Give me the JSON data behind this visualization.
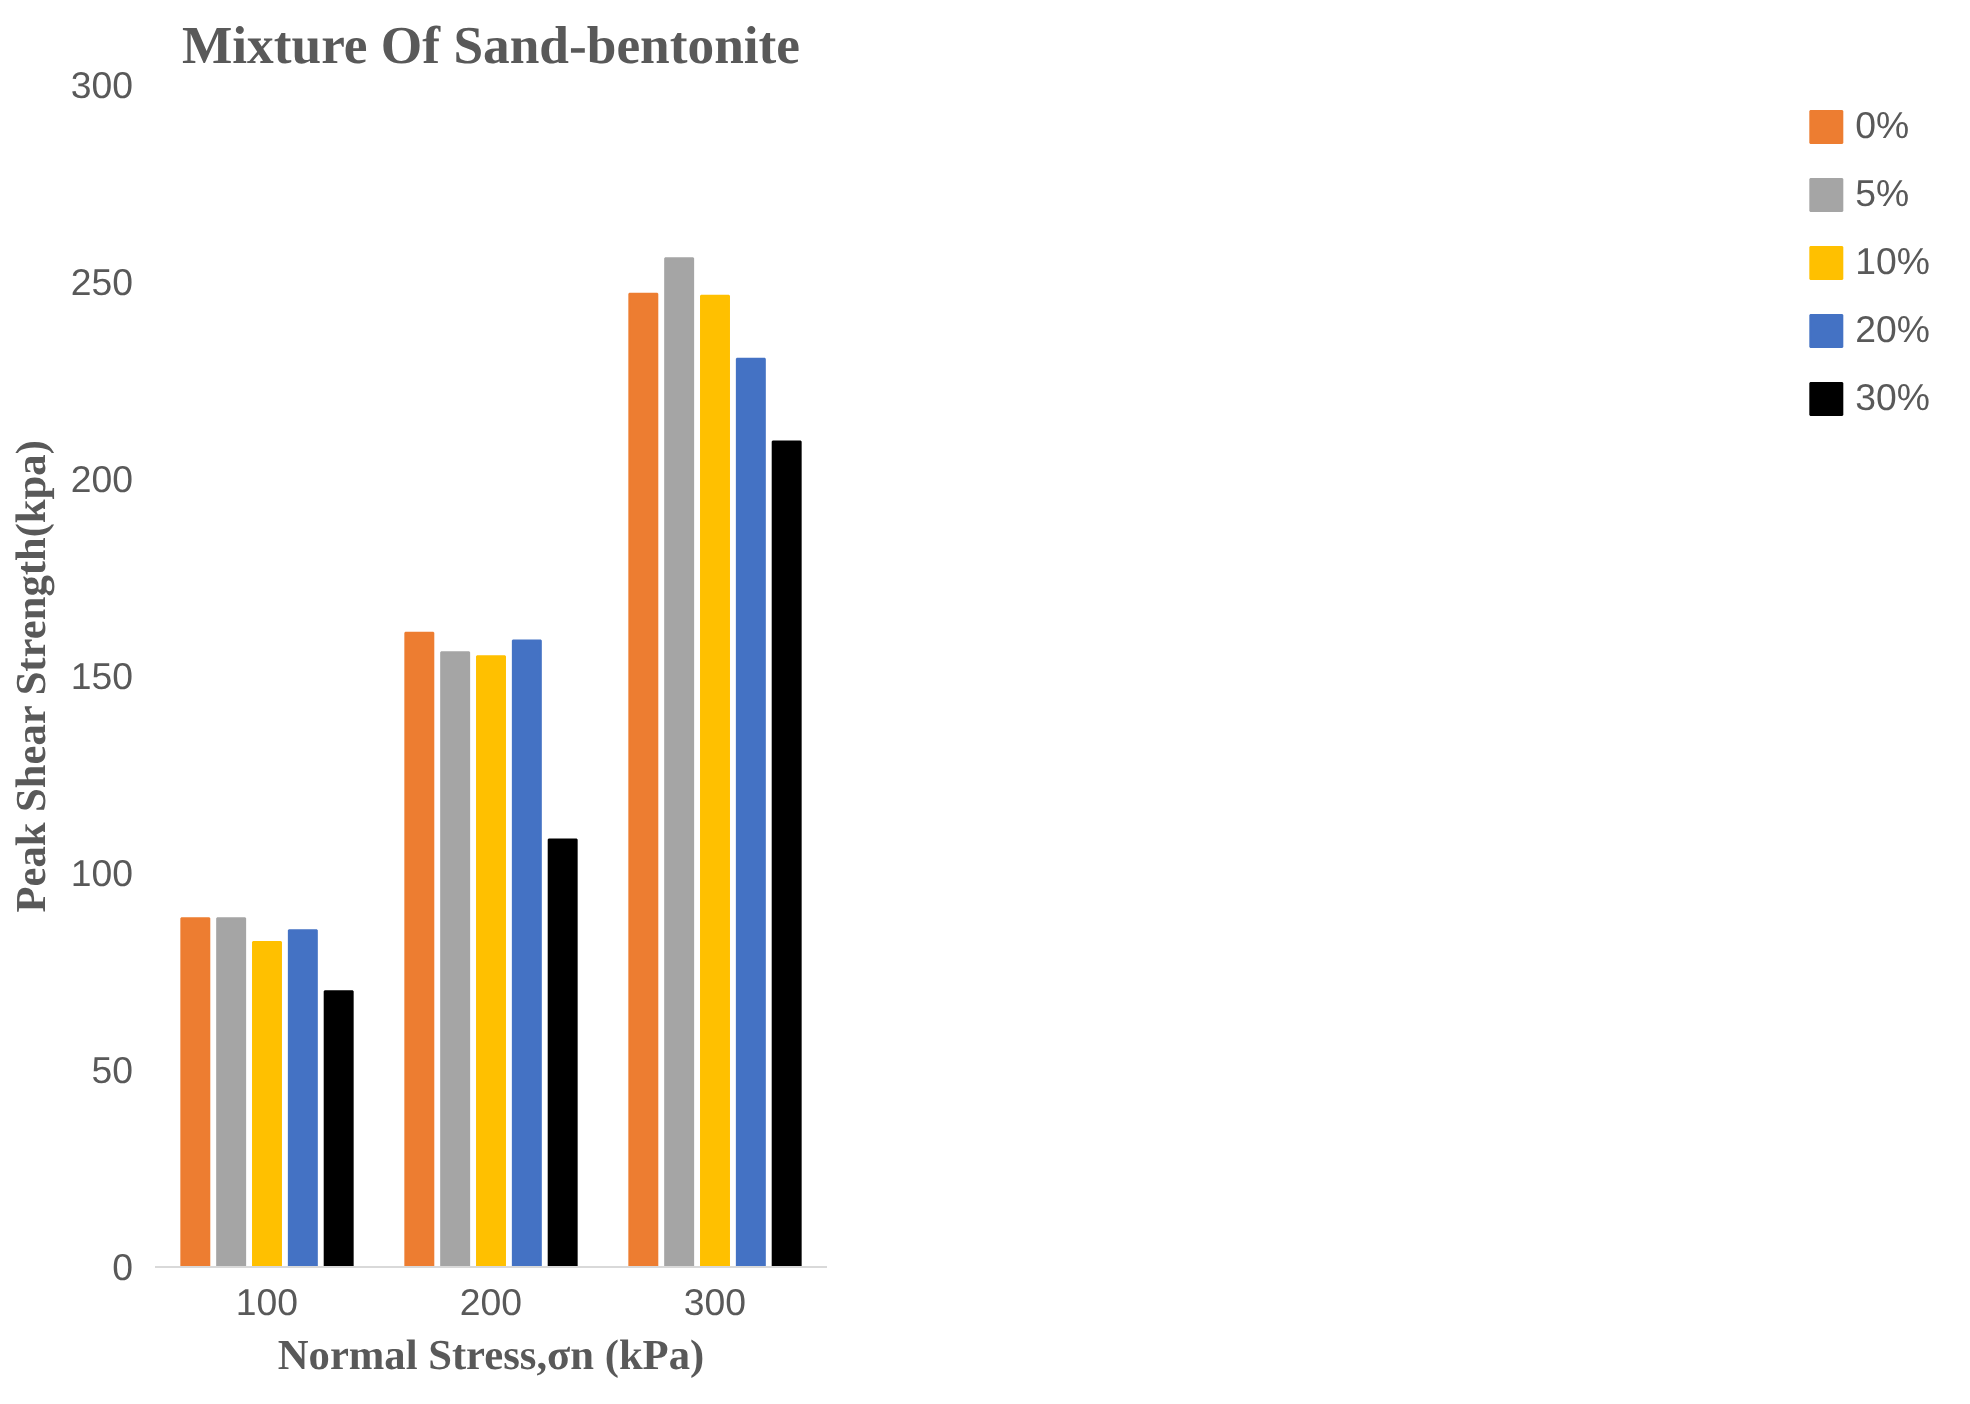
{
  "chart_data": {
    "type": "bar",
    "title": "Mixture Of Sand-bentonite",
    "xlabel": "Normal Stress,σn (kPa)",
    "ylabel": "Peak Shear Strength(kpa)",
    "categories": [
      "100",
      "200",
      "300"
    ],
    "series": [
      {
        "name": "0%",
        "color": "#ed7d31",
        "values": [
          88.5,
          161,
          247
        ]
      },
      {
        "name": "5%",
        "color": "#a5a5a5",
        "values": [
          88.5,
          156,
          256
        ]
      },
      {
        "name": "10%",
        "color": "#ffc000",
        "values": [
          82.5,
          155,
          246.5
        ]
      },
      {
        "name": "20%",
        "color": "#4472c4",
        "values": [
          85.5,
          159,
          230.5
        ]
      },
      {
        "name": "30%",
        "color": "#000000",
        "values": [
          70,
          108.5,
          209.5
        ]
      }
    ],
    "ylim": [
      0,
      300
    ],
    "yticks": [
      0,
      50,
      100,
      150,
      200,
      250,
      300
    ],
    "grid": false,
    "legend": "right"
  }
}
